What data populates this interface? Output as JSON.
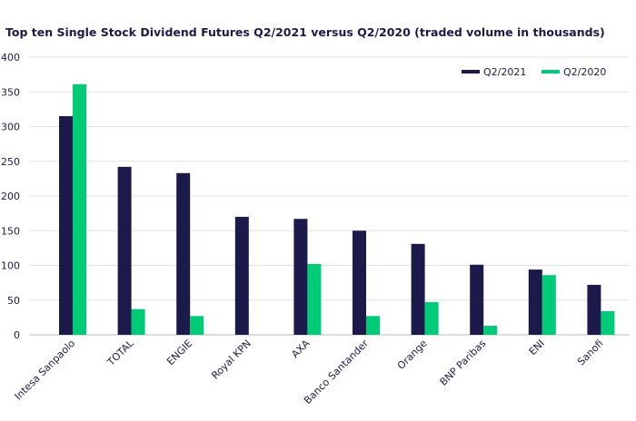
{
  "chart_data": {
    "type": "bar",
    "title": "Top ten Single Stock Dividend Futures Q2/2021 versus Q2/2020 (traded volume in thousands)",
    "xlabel": "",
    "ylabel": "",
    "ylim": [
      0,
      400
    ],
    "yticks": [
      0,
      50,
      100,
      150,
      200,
      250,
      300,
      350,
      400
    ],
    "grid": true,
    "legend_position": "top-right",
    "categories": [
      "Intesa Sanpaolo",
      "TOTAL",
      "ENGIE",
      "Royal KPN",
      "AXA",
      "Banco Santander",
      "Orange",
      "BNP Paribas",
      "ENI",
      "Sanofi"
    ],
    "series": [
      {
        "name": "Q2/2021",
        "color": "#1c1a4a",
        "values": [
          315,
          242,
          233,
          170,
          167,
          150,
          131,
          101,
          94,
          72
        ]
      },
      {
        "name": "Q2/2020",
        "color": "#00cc77",
        "values": [
          361,
          37,
          27,
          0,
          102,
          27,
          47,
          13,
          86,
          34
        ]
      }
    ]
  }
}
